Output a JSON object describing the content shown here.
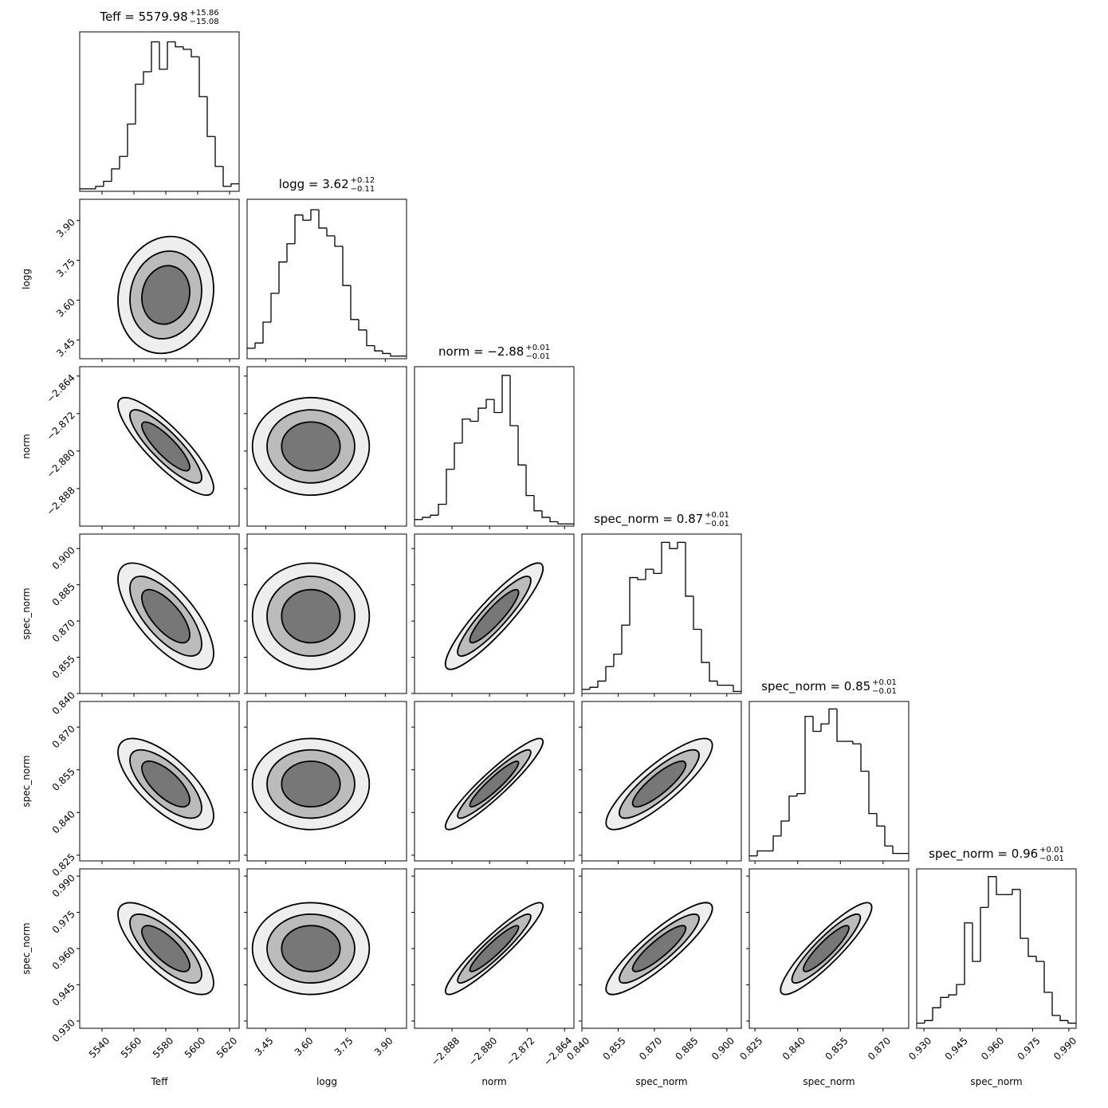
{
  "chart_data": {
    "type": "corner",
    "line_color": "#000000",
    "contour_levels": [
      1,
      1.5,
      2
    ],
    "contour_fills": [
      "#eeeeee",
      "#bbbbbb",
      "#777777"
    ],
    "parameters": [
      {
        "label": "Teff",
        "title": "Teff = 5579.98",
        "title_sup": "+15.86",
        "title_sub": "−15.08",
        "lim": [
          5526,
          5626
        ],
        "ticks": [
          5540,
          5560,
          5580,
          5600,
          5620
        ],
        "center": 5580,
        "sigma": 15,
        "bins": [
          5526,
          5531,
          5536,
          5541,
          5546,
          5551,
          5556,
          5561,
          5566,
          5571,
          5576,
          5581,
          5586,
          5591,
          5596,
          5601,
          5606,
          5611,
          5616,
          5621,
          5626
        ],
        "counts": [
          1,
          1,
          2,
          4,
          9,
          14,
          27,
          43,
          48,
          60,
          49,
          60,
          58,
          57,
          54,
          38,
          22,
          10,
          2,
          3
        ],
        "hist_ylim": [
          0,
          64
        ]
      },
      {
        "label": "logg",
        "title": "logg = 3.62",
        "title_sup": "+0.12",
        "title_sub": "−0.11",
        "lim": [
          3.38,
          3.98
        ],
        "ticks": [
          {
            "value": 3.45,
            "label": "3.45"
          },
          {
            "value": 3.6,
            "label": "3.60"
          },
          {
            "value": 3.75,
            "label": "3.75"
          },
          {
            "value": 3.9,
            "label": "3.90"
          }
        ],
        "center": 3.62,
        "sigma": 0.11,
        "bins": [
          3.38,
          3.41,
          3.44,
          3.47,
          3.5,
          3.53,
          3.56,
          3.59,
          3.62,
          3.65,
          3.68,
          3.71,
          3.74,
          3.77,
          3.8,
          3.83,
          3.86,
          3.89,
          3.92,
          3.95,
          3.98
        ],
        "counts": [
          4,
          6,
          14,
          25,
          37,
          44,
          55,
          53,
          57,
          50,
          47,
          43,
          28,
          15,
          11,
          5,
          3,
          2,
          1,
          1
        ],
        "hist_ylim": [
          0,
          61
        ]
      },
      {
        "label": "norm",
        "title": "norm = −2.88",
        "title_sup": "+0.01",
        "title_sub": "−0.01",
        "lim": [
          -2.896,
          -2.862
        ],
        "ticks": [
          {
            "value": -2.888,
            "label": "−2.888"
          },
          {
            "value": -2.88,
            "label": "−2.880"
          },
          {
            "value": -2.872,
            "label": "−2.872"
          },
          {
            "value": -2.864,
            "label": "−2.864"
          }
        ],
        "center": -2.879,
        "sigma": 0.0052,
        "bins": [
          -2.896,
          -2.8943,
          -2.8926,
          -2.8909,
          -2.8892,
          -2.8875,
          -2.8858,
          -2.8841,
          -2.8824,
          -2.8807,
          -2.879,
          -2.8773,
          -2.8756,
          -2.8739,
          -2.8722,
          -2.8705,
          -2.8688,
          -2.8671,
          -2.8654,
          -2.8637,
          -2.862
        ],
        "counts": [
          3,
          4,
          5,
          10,
          26,
          38,
          49,
          48,
          54,
          58,
          52,
          69,
          46,
          28,
          14,
          7,
          4,
          2,
          1,
          1
        ],
        "hist_ylim": [
          0,
          73
        ]
      },
      {
        "label": "spec_norm",
        "title": "spec_norm = 0.87",
        "title_sup": "+0.01",
        "title_sub": "−0.01",
        "lim": [
          0.84,
          0.906
        ],
        "ticks": [
          {
            "value": 0.84,
            "label": "0.840"
          },
          0.855,
          {
            "value": 0.87,
            "label": "0.870"
          },
          0.885,
          {
            "value": 0.9,
            "label": "0.900"
          }
        ],
        "center": 0.872,
        "sigma": 0.011,
        "bins": [
          0.84,
          0.8433,
          0.8466,
          0.8499,
          0.8532,
          0.8565,
          0.8598,
          0.8631,
          0.8664,
          0.8697,
          0.873,
          0.8763,
          0.8796,
          0.8829,
          0.8862,
          0.8895,
          0.8928,
          0.8961,
          0.8994,
          0.9027,
          0.906
        ],
        "counts": [
          2,
          3,
          6,
          13,
          19,
          33,
          56,
          55,
          60,
          58,
          73,
          70,
          73,
          47,
          31,
          15,
          6,
          4,
          4,
          1
        ],
        "hist_ylim": [
          0,
          77
        ]
      },
      {
        "label": "spec_norm",
        "title": "spec_norm = 0.85",
        "title_sup": "+0.01",
        "title_sub": "−0.01",
        "lim": [
          0.823,
          0.879
        ],
        "ticks": [
          0.825,
          {
            "value": 0.84,
            "label": "0.840"
          },
          0.855,
          {
            "value": 0.87,
            "label": "0.870"
          }
        ],
        "center": 0.85,
        "sigma": 0.008,
        "bins": [
          0.823,
          0.8258,
          0.8286,
          0.8314,
          0.8342,
          0.837,
          0.8398,
          0.8426,
          0.8454,
          0.8482,
          0.851,
          0.8538,
          0.8566,
          0.8594,
          0.8622,
          0.865,
          0.8678,
          0.8706,
          0.8734,
          0.8762,
          0.879
        ],
        "counts": [
          2,
          4,
          4,
          10,
          16,
          26,
          27,
          58,
          52,
          55,
          61,
          48,
          48,
          47,
          36,
          19,
          14,
          6,
          3,
          3
        ],
        "hist_ylim": [
          0,
          64
        ]
      },
      {
        "label": "spec_norm",
        "title": "spec_norm = 0.96",
        "title_sup": "+0.01",
        "title_sub": "−0.01",
        "lim": [
          0.927,
          0.993
        ],
        "ticks": [
          {
            "value": 0.93,
            "label": "0.930"
          },
          0.945,
          {
            "value": 0.96,
            "label": "0.960"
          },
          0.975,
          {
            "value": 0.99,
            "label": "0.990"
          }
        ],
        "center": 0.96,
        "sigma": 0.0095,
        "bins": [
          0.927,
          0.9303,
          0.9336,
          0.9369,
          0.9402,
          0.9435,
          0.9468,
          0.9501,
          0.9534,
          0.9567,
          0.96,
          0.9633,
          0.9666,
          0.9699,
          0.9732,
          0.9765,
          0.9798,
          0.9831,
          0.9864,
          0.9897,
          0.993
        ],
        "counts": [
          2,
          3,
          8,
          12,
          13,
          17,
          41,
          26,
          47,
          59,
          52,
          52,
          54,
          35,
          28,
          26,
          14,
          5,
          3,
          2
        ],
        "hist_ylim": [
          0,
          62
        ]
      }
    ],
    "correlations": [
      [
        0.1
      ],
      [
        -0.85,
        0.0
      ],
      [
        -0.7,
        0.0,
        0.9
      ],
      [
        -0.7,
        0.0,
        0.93,
        0.85
      ],
      [
        -0.75,
        0.0,
        0.93,
        0.88,
        0.9
      ]
    ]
  }
}
